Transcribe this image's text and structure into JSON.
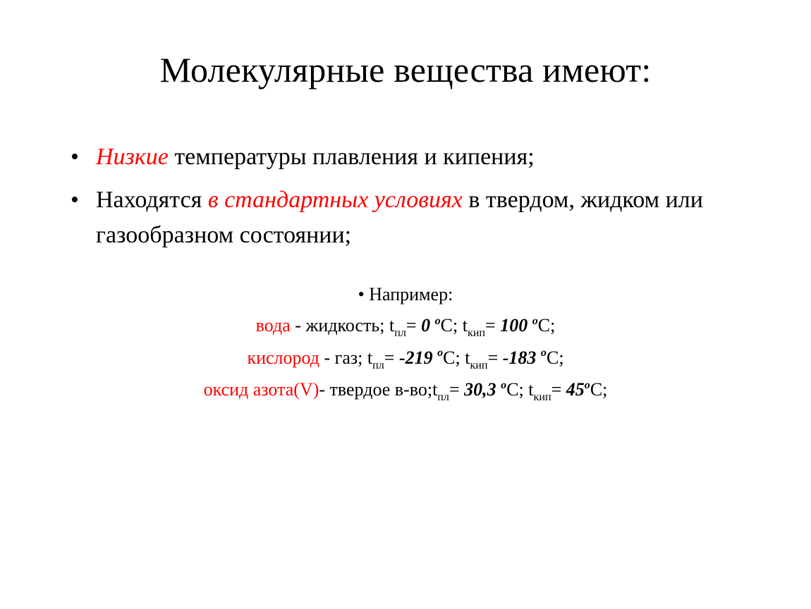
{
  "colors": {
    "accent": "#ff0000",
    "text": "#000000",
    "background": "#ffffff"
  },
  "title": "Молекулярные вещества имеют:",
  "bullets": {
    "b1_red": "Низкие",
    "b1_rest": " температуры плавления и кипения;",
    "b2_lead": "Находятся ",
    "b2_red": "в стандартных условиях",
    "b2_rest1": " в твердом, жидком или газообразном состоянии;"
  },
  "examples": {
    "header": "Например:",
    "water": {
      "name": "вода",
      "dash_state": " - жидкость;  ",
      "t_pl_label_t": "t",
      "t_pl_label_sub": "пл",
      "eq1": "=  ",
      "t_pl_val": "0 ",
      "deg_o": "o",
      "deg_C": "C",
      "sep": ";  ",
      "t_kip_label_t": "t",
      "t_kip_label_sub": "кип",
      "eq2": "=  ",
      "t_kip_val": "100 ",
      "trail": ";"
    },
    "oxygen": {
      "name": "кислород",
      "dash_state": " - газ; ",
      "t_pl_label_t": "t",
      "t_pl_label_sub": "пл",
      "eq1": "=  ",
      "t_pl_val": "-219 ",
      "deg_o": "o",
      "deg_C": "C",
      "sep": ";  ",
      "t_kip_label_t": "t",
      "t_kip_label_sub": "кип",
      "eq2": "=  ",
      "t_kip_val": "-183 ",
      "trail": ";"
    },
    "n2o5": {
      "name": "оксид азота(V)",
      "dash_state": "- твердое в-во;",
      "t_pl_label_t": "t",
      "t_pl_label_sub": "пл",
      "eq1": "=  ",
      "t_pl_val": "30,3 ",
      "deg_o": "o",
      "deg_C": "C",
      "sep": ";  ",
      "t_kip_label_t": "t",
      "t_kip_label_sub": "кип",
      "eq2": "=  ",
      "t_kip_val": "45",
      "trail": ";"
    }
  }
}
